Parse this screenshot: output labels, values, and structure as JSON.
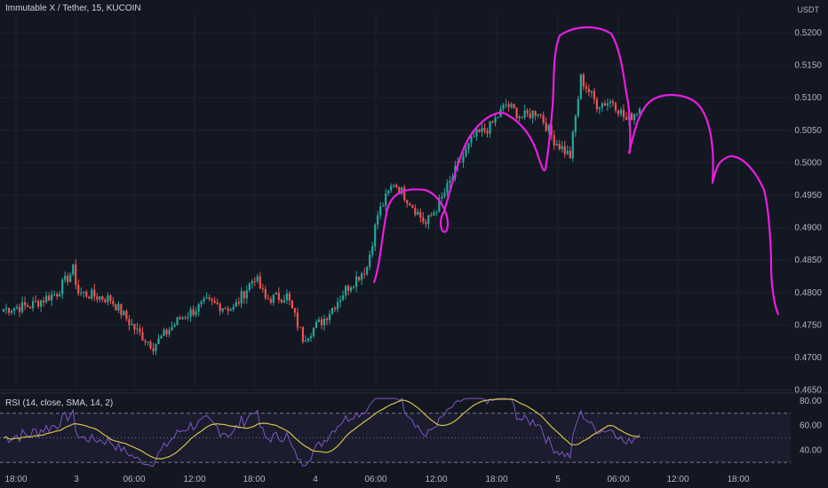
{
  "chart_data": {
    "type": "candlestick",
    "title": "Immutable X / Tether, 15, KUCOIN",
    "price_unit": "USDT",
    "y_ticks": [
      "0.5200",
      "0.5150",
      "0.5100",
      "0.5050",
      "0.5000",
      "0.4950",
      "0.4900",
      "0.4850",
      "0.4800",
      "0.4750",
      "0.4700",
      "0.4650"
    ],
    "ylim": [
      0.465,
      0.522
    ],
    "x_ticks": [
      "18:00",
      "3",
      "06:00",
      "12:00",
      "18:00",
      "4",
      "06:00",
      "12:00",
      "18:00",
      "5",
      "06:00",
      "12:00",
      "18:00"
    ],
    "price_anchors": [
      {
        "i": 0,
        "p": 0.4775
      },
      {
        "i": 10,
        "p": 0.478
      },
      {
        "i": 20,
        "p": 0.48
      },
      {
        "i": 26,
        "p": 0.4835
      },
      {
        "i": 28,
        "p": 0.48
      },
      {
        "i": 40,
        "p": 0.479
      },
      {
        "i": 50,
        "p": 0.474
      },
      {
        "i": 56,
        "p": 0.4718
      },
      {
        "i": 66,
        "p": 0.476
      },
      {
        "i": 76,
        "p": 0.4785
      },
      {
        "i": 86,
        "p": 0.4775
      },
      {
        "i": 94,
        "p": 0.4825
      },
      {
        "i": 98,
        "p": 0.479
      },
      {
        "i": 106,
        "p": 0.4795
      },
      {
        "i": 112,
        "p": 0.473
      },
      {
        "i": 120,
        "p": 0.476
      },
      {
        "i": 128,
        "p": 0.4805
      },
      {
        "i": 136,
        "p": 0.484
      },
      {
        "i": 140,
        "p": 0.492
      },
      {
        "i": 146,
        "p": 0.497
      },
      {
        "i": 152,
        "p": 0.494
      },
      {
        "i": 158,
        "p": 0.4905
      },
      {
        "i": 164,
        "p": 0.4945
      },
      {
        "i": 170,
        "p": 0.4995
      },
      {
        "i": 176,
        "p": 0.504
      },
      {
        "i": 182,
        "p": 0.5055
      },
      {
        "i": 188,
        "p": 0.509
      },
      {
        "i": 194,
        "p": 0.507
      },
      {
        "i": 200,
        "p": 0.508
      },
      {
        "i": 206,
        "p": 0.5035
      },
      {
        "i": 212,
        "p": 0.501
      },
      {
        "i": 216,
        "p": 0.513
      },
      {
        "i": 222,
        "p": 0.509
      },
      {
        "i": 228,
        "p": 0.5095
      },
      {
        "i": 233,
        "p": 0.5065
      },
      {
        "i": 238,
        "p": 0.5085
      }
    ],
    "candle_count": 239,
    "annotation": "hand-drawn magenta head-and-shoulders style projection curve",
    "annotation_color": "#e91ee0",
    "up_color": "#26a69a",
    "down_color": "#ef5350",
    "rsi": {
      "label": "RSI (14, close, SMA, 14, 2)",
      "levels": [
        "80.00",
        "60.00",
        "40.00"
      ],
      "ylim": [
        25,
        85
      ],
      "line_color": "#7e57c2",
      "sma_color": "#d4c14a"
    }
  }
}
